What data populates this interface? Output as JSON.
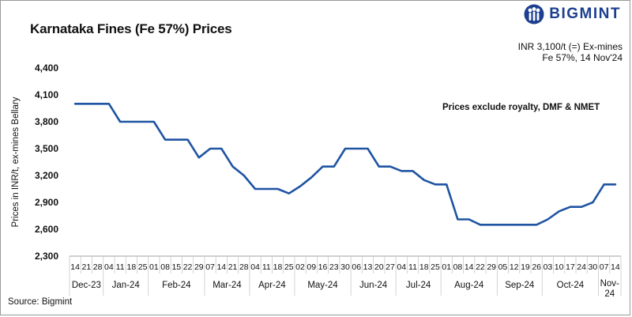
{
  "header": {
    "title": "Karnataka Fines (Fe 57%) Prices",
    "brand": "BIGMINT",
    "price_note_line1": "INR 3,100/t (=) Ex-mines",
    "price_note_line2": "Fe 57%, 14 Nov'24"
  },
  "annotation": "Prices exclude royalty, DMF & NMET",
  "footer": {
    "source": "Source: Bigmint"
  },
  "colors": {
    "line": "#1f54a3",
    "brand": "#1c3f8f"
  },
  "chart_data": {
    "type": "line",
    "title": "Karnataka Fines (Fe 57%) Prices",
    "ylabel": "Prices in INR/t, ex-mines Bellary",
    "ylim": [
      2300,
      4400
    ],
    "yticks": [
      2300,
      2600,
      2900,
      3200,
      3500,
      3800,
      4100,
      4400
    ],
    "ytick_labels": [
      "2,300",
      "2,600",
      "2,900",
      "3,200",
      "3,500",
      "3,800",
      "4,100",
      "4,400"
    ],
    "grid": false,
    "x": [
      "14",
      "21",
      "28",
      "04",
      "11",
      "18",
      "25",
      "01",
      "08",
      "15",
      "22",
      "29",
      "07",
      "14",
      "21",
      "28",
      "04",
      "11",
      "18",
      "25",
      "02",
      "09",
      "16",
      "23",
      "30",
      "06",
      "13",
      "20",
      "27",
      "04",
      "11",
      "18",
      "25",
      "01",
      "08",
      "14",
      "22",
      "29",
      "05",
      "12",
      "19",
      "26",
      "03",
      "10",
      "17",
      "24",
      "30",
      "07",
      "14"
    ],
    "values": [
      4000,
      4000,
      4000,
      4000,
      3800,
      3800,
      3800,
      3800,
      3600,
      3600,
      3600,
      3400,
      3500,
      3500,
      3300,
      3200,
      3050,
      3050,
      3050,
      3000,
      3080,
      3180,
      3300,
      3300,
      3500,
      3500,
      3500,
      3300,
      3300,
      3250,
      3250,
      3150,
      3100,
      3100,
      2710,
      2710,
      2650,
      2650,
      2650,
      2650,
      2650,
      2650,
      2710,
      2800,
      2850,
      2850,
      2900,
      3100,
      3100
    ],
    "months": [
      {
        "label": "Dec-23",
        "start": 0,
        "end": 2
      },
      {
        "label": "Jan-24",
        "start": 3,
        "end": 6
      },
      {
        "label": "Feb-24",
        "start": 7,
        "end": 11
      },
      {
        "label": "Mar-24",
        "start": 12,
        "end": 15
      },
      {
        "label": "Apr-24",
        "start": 16,
        "end": 19
      },
      {
        "label": "May-24",
        "start": 20,
        "end": 24
      },
      {
        "label": "Jun-24",
        "start": 25,
        "end": 28
      },
      {
        "label": "Jul-24",
        "start": 29,
        "end": 32
      },
      {
        "label": "Aug-24",
        "start": 33,
        "end": 37
      },
      {
        "label": "Sep-24",
        "start": 38,
        "end": 41
      },
      {
        "label": "Oct-24",
        "start": 42,
        "end": 46
      },
      {
        "label": "Nov-24",
        "start": 47,
        "end": 48
      }
    ]
  }
}
